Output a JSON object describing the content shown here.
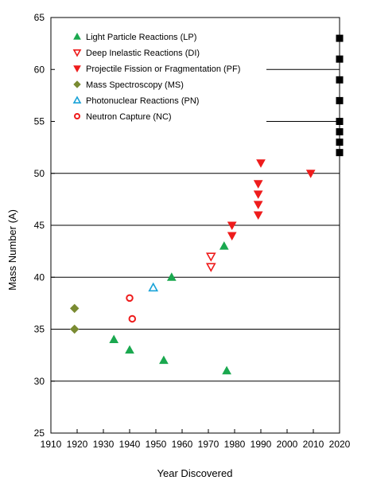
{
  "chart_data": {
    "type": "scatter",
    "title": "",
    "xlabel": "Year Discovered",
    "ylabel": "Mass Number (A)",
    "xlim": [
      1910,
      2020
    ],
    "ylim": [
      25,
      65
    ],
    "x_ticks": [
      "1910",
      "1920",
      "1930",
      "1940",
      "1950",
      "1960",
      "1970",
      "1980",
      "1990",
      "2000",
      "2010",
      "2020"
    ],
    "y_ticks": [
      "25",
      "30",
      "35",
      "40",
      "45",
      "50",
      "55",
      "60",
      "65"
    ],
    "grid": "horizontal",
    "legend_position": "top-left",
    "series": [
      {
        "name": "Light Particle Reactions (LP)",
        "marker": "triangle-up-filled",
        "color": "#1aa84f",
        "points": [
          [
            1934,
            34
          ],
          [
            1940,
            33
          ],
          [
            1953,
            32
          ],
          [
            1956,
            40
          ],
          [
            1976,
            43
          ],
          [
            1977,
            31
          ]
        ]
      },
      {
        "name": "Deep Inelastic Reactions (DI)",
        "marker": "triangle-down-open",
        "color": "#ee1c1c",
        "points": [
          [
            1971,
            42
          ],
          [
            1971,
            41
          ]
        ]
      },
      {
        "name": "Projectile Fission or Fragmentation (PF)",
        "marker": "triangle-down-filled",
        "color": "#ee1c1c",
        "points": [
          [
            1979,
            45
          ],
          [
            1979,
            44
          ],
          [
            1989,
            49
          ],
          [
            1989,
            48
          ],
          [
            1989,
            47
          ],
          [
            1989,
            46
          ],
          [
            1990,
            51
          ],
          [
            2009,
            50
          ]
        ]
      },
      {
        "name": "Mass Spectroscopy (MS)",
        "marker": "diamond-filled",
        "color": "#7a8b32",
        "points": [
          [
            1919,
            37
          ],
          [
            1919,
            35
          ]
        ]
      },
      {
        "name": "Photonuclear Reactions (PN)",
        "marker": "triangle-up-open",
        "color": "#1aa3d8",
        "points": [
          [
            1949,
            39
          ]
        ]
      },
      {
        "name": "Neutron Capture (NC)",
        "marker": "circle-open",
        "color": "#ee1c1c",
        "points": [
          [
            1940,
            38
          ],
          [
            1941,
            36
          ]
        ]
      },
      {
        "name": "",
        "marker": "square-filled",
        "color": "#000000",
        "points": [
          [
            2020,
            63
          ],
          [
            2020,
            61
          ],
          [
            2020,
            59
          ],
          [
            2020,
            57
          ],
          [
            2020,
            55
          ],
          [
            2020,
            54
          ],
          [
            2020,
            53
          ],
          [
            2020,
            52
          ]
        ]
      }
    ]
  }
}
